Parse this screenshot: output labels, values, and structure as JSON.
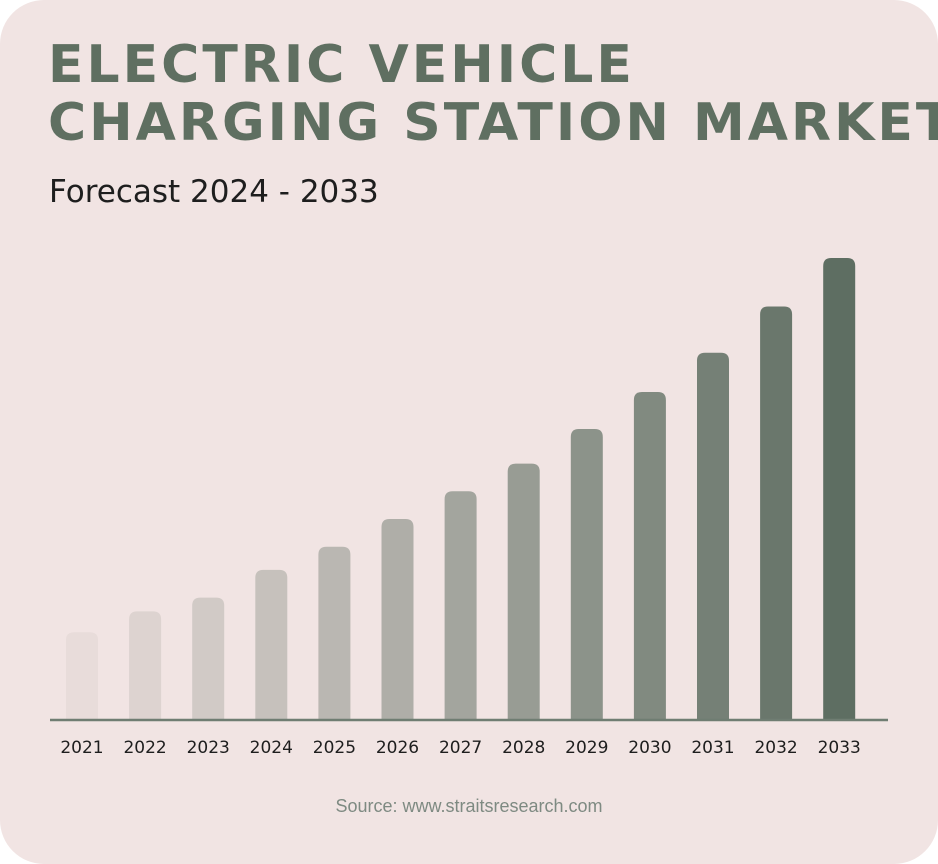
{
  "header": {
    "title_line1": "ELECTRIC VEHICLE",
    "title_line2": "CHARGING STATION MARKET",
    "subtitle": "Forecast 2024 - 2033"
  },
  "footer": {
    "source": "Source: www.straitsresearch.com"
  },
  "colors": {
    "background": "#f1e4e3",
    "title": "#5f6f61",
    "axis": "#6f7d72",
    "bar_start": "#e8dcda",
    "bar_end": "#5e6e62"
  },
  "chart_data": {
    "type": "bar",
    "title": "ELECTRIC VEHICLE CHARGING STATION MARKET",
    "subtitle": "Forecast 2024 - 2033",
    "categories": [
      "2021",
      "2022",
      "2023",
      "2024",
      "2025",
      "2026",
      "2027",
      "2028",
      "2029",
      "2030",
      "2031",
      "2032",
      "2033"
    ],
    "values": [
      19,
      23.5,
      26.5,
      32.5,
      37.5,
      43.5,
      49.5,
      55.5,
      63,
      71,
      79.5,
      89.5,
      100
    ],
    "value_scale": "relative (tallest bar = 100); no values or y-axis printed",
    "ylim": [
      0,
      100
    ],
    "grid": false,
    "legend": "none",
    "xlabel": "",
    "ylabel": ""
  }
}
